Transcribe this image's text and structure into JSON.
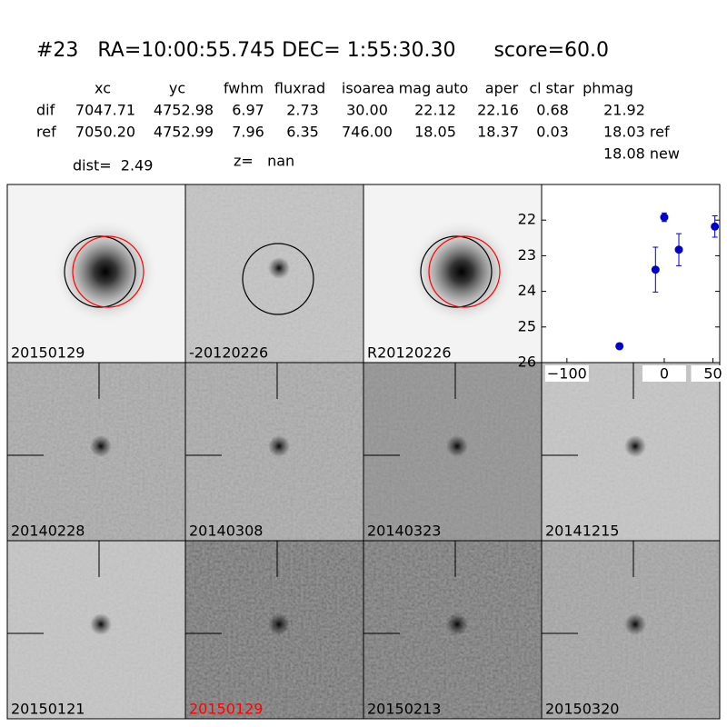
{
  "header": {
    "title": "#23   RA=10:00:55.745 DEC= 1:55:30.30      score=60.0"
  },
  "table": {
    "columns": [
      "xc",
      "yc",
      "fwhm",
      "fluxrad",
      "isoarea",
      "mag auto",
      "aper",
      "cl star",
      "phmag"
    ],
    "rows": [
      {
        "label": "dif",
        "cells": [
          "7047.71",
          "4752.98",
          "6.97",
          "2.73",
          "30.00",
          "22.12",
          "22.16",
          "0.68",
          "21.92"
        ]
      },
      {
        "label": "ref",
        "cells": [
          "7050.20",
          "4752.99",
          "7.96",
          "6.35",
          "746.00",
          "18.05",
          "18.37",
          "0.03",
          "18.03 ref"
        ]
      }
    ],
    "extra": "18.08 new"
  },
  "info": {
    "dist": "dist=  2.49",
    "z": "z=   nan"
  },
  "stamps": [
    {
      "label": "20150129",
      "color": "#000000"
    },
    {
      "label": "-20120226",
      "color": "#000000"
    },
    {
      "label": "R20120226",
      "color": "#000000"
    },
    {
      "label": "20140228",
      "color": "#000000"
    },
    {
      "label": "20140308",
      "color": "#000000"
    },
    {
      "label": "20140323",
      "color": "#000000"
    },
    {
      "label": "20141215",
      "color": "#000000"
    },
    {
      "label": "20150121",
      "color": "#000000"
    },
    {
      "label": "20150129",
      "color": "#ff0000"
    },
    {
      "label": "20150213",
      "color": "#000000"
    },
    {
      "label": "20150320",
      "color": "#000000"
    }
  ],
  "chart_data": {
    "type": "errorbar",
    "x": [
      -46,
      -9,
      0,
      15,
      52
    ],
    "values": [
      25.54,
      23.39,
      21.92,
      22.83,
      22.18
    ],
    "errors": [
      0.05,
      0.63,
      0.12,
      0.45,
      0.3
    ],
    "color": "#0000cc",
    "xlim": [
      -126,
      57
    ],
    "ylim": [
      26,
      21
    ],
    "xticks": [
      {
        "value": -100,
        "label": "−100"
      },
      0,
      50
    ],
    "yticks": [
      22,
      23,
      24,
      25,
      26
    ]
  }
}
